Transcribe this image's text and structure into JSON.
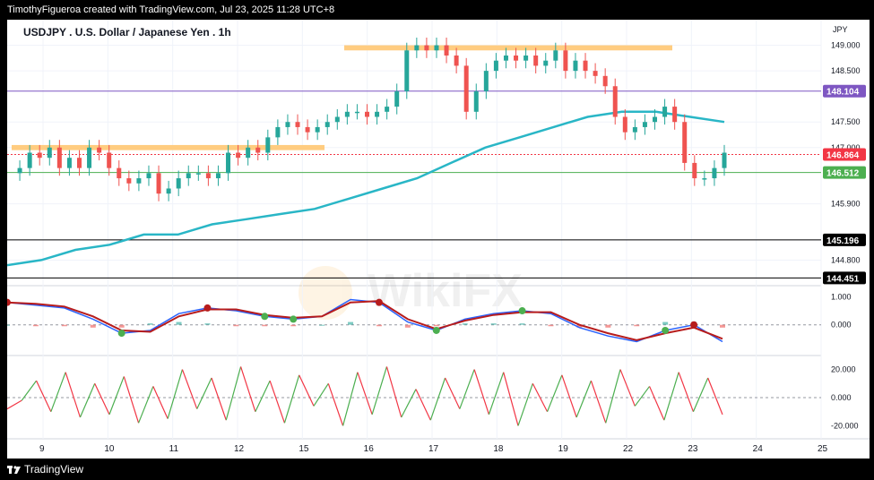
{
  "header": {
    "credit": "TimothyFigueroa created with TradingView.com, Jul 23, 2025 11:28 UTC+8"
  },
  "footer": {
    "brand": "TradingView"
  },
  "watermark": "WikiFX",
  "chart_data": {
    "type": "line",
    "title": "USDJPY . U.S. Dollar / Japanese Yen . 1h",
    "currency": "JPY",
    "x_ticks": [
      "9",
      "10",
      "11",
      "12",
      "15",
      "16",
      "17",
      "18",
      "19",
      "22",
      "23",
      "24",
      "25"
    ],
    "y_ticks": [
      "149.000",
      "148.500",
      "147.500",
      "147.000",
      "145.900",
      "145.200",
      "144.800"
    ],
    "ylim": [
      144.3,
      149.5
    ],
    "price_series": {
      "name": "USDJPY",
      "color": "#26a69a",
      "down_color": "#ef5350",
      "values": [
        146.5,
        146.6,
        146.9,
        146.8,
        147.0,
        146.6,
        146.8,
        146.6,
        147.0,
        146.9,
        146.6,
        146.4,
        146.3,
        146.4,
        146.5,
        146.1,
        146.2,
        146.4,
        146.5,
        146.5,
        146.4,
        146.5,
        146.9,
        146.8,
        147.0,
        146.9,
        147.2,
        147.4,
        147.5,
        147.4,
        147.3,
        147.4,
        147.5,
        147.6,
        147.7,
        147.7,
        147.6,
        147.7,
        147.8,
        148.1,
        148.9,
        149.0,
        148.9,
        149.0,
        148.8,
        148.6,
        147.7,
        148.1,
        148.5,
        148.7,
        148.8,
        148.7,
        148.8,
        148.6,
        148.7,
        148.9,
        148.5,
        148.7,
        148.5,
        148.4,
        148.2,
        147.6,
        147.3,
        147.4,
        147.5,
        147.6,
        147.8,
        147.5,
        146.7,
        146.4,
        146.4,
        146.6,
        146.9
      ],
      "hl_spread": 0.15
    },
    "ma_series": {
      "name": "MA",
      "color": "#29b6c6",
      "values": [
        144.7,
        144.8,
        145.0,
        145.1,
        145.3,
        145.3,
        145.5,
        145.6,
        145.7,
        145.8,
        146.0,
        146.2,
        146.4,
        146.7,
        147.0,
        147.2,
        147.4,
        147.6,
        147.7,
        147.7,
        147.6,
        147.5
      ]
    },
    "zones": [
      {
        "type": "resistance",
        "from": 148.9,
        "to": 149.0,
        "color": "#ffcc80"
      },
      {
        "type": "resistance",
        "from": 146.95,
        "to": 147.05,
        "color": "#ffcc80"
      }
    ],
    "price_lines": [
      {
        "value": 148.104,
        "label": "148.104",
        "color": "#7e57c2"
      },
      {
        "value": 146.864,
        "label": "146.864",
        "color": "#f23645"
      },
      {
        "value": 146.512,
        "label": "146.512",
        "color": "#4caf50"
      },
      {
        "value": 145.196,
        "label": "145.196",
        "color": "#000000"
      },
      {
        "value": 144.451,
        "label": "144.451",
        "color": "#000000"
      }
    ],
    "macd": {
      "y_ticks": [
        "1.000",
        "0.000"
      ],
      "ylim": [
        -1.0,
        1.3
      ],
      "macd_line": {
        "color": "#2962ff",
        "values": [
          0.8,
          0.7,
          0.6,
          0.2,
          -0.3,
          -0.2,
          0.4,
          0.6,
          0.5,
          0.3,
          0.2,
          0.3,
          0.9,
          0.8,
          0.1,
          -0.2,
          0.2,
          0.4,
          0.5,
          0.4,
          -0.1,
          -0.4,
          -0.6,
          -0.2,
          0.0,
          -0.6
        ]
      },
      "signal_line": {
        "color": "#b71c1c",
        "values": [
          0.8,
          0.75,
          0.65,
          0.3,
          -0.2,
          -0.25,
          0.3,
          0.55,
          0.55,
          0.35,
          0.25,
          0.3,
          0.8,
          0.85,
          0.2,
          -0.15,
          0.15,
          0.35,
          0.45,
          0.45,
          0.0,
          -0.3,
          -0.55,
          -0.3,
          -0.1,
          -0.5
        ]
      },
      "histogram": [
        0.0,
        -0.05,
        -0.05,
        -0.1,
        -0.1,
        0.05,
        0.1,
        0.05,
        -0.05,
        -0.05,
        -0.05,
        0.0,
        0.1,
        -0.05,
        -0.1,
        -0.05,
        0.05,
        0.05,
        0.05,
        -0.05,
        -0.1,
        -0.1,
        -0.05,
        0.1,
        0.1,
        -0.1
      ],
      "cross_markers": [
        {
          "index": 0,
          "type": "bearish"
        },
        {
          "index": 4,
          "type": "bullish"
        },
        {
          "index": 7,
          "type": "bearish"
        },
        {
          "index": 9,
          "type": "bullish"
        },
        {
          "index": 10,
          "type": "bullish"
        },
        {
          "index": 13,
          "type": "bearish"
        },
        {
          "index": 15,
          "type": "bullish"
        },
        {
          "index": 18,
          "type": "bullish"
        },
        {
          "index": 23,
          "type": "bullish"
        },
        {
          "index": 24,
          "type": "bearish"
        }
      ]
    },
    "oscillator": {
      "y_ticks": [
        "20.000",
        "0.000",
        "-20.000"
      ],
      "ylim": [
        -28,
        28
      ],
      "color_up": "#4caf50",
      "color_down": "#f23645",
      "values": [
        -8,
        -2,
        12,
        -10,
        18,
        -14,
        10,
        -12,
        15,
        -18,
        8,
        -15,
        20,
        -8,
        14,
        -16,
        22,
        -10,
        12,
        -18,
        16,
        -6,
        10,
        -20,
        18,
        -12,
        22,
        -14,
        6,
        -16,
        14,
        -8,
        20,
        -12,
        18,
        -20,
        10,
        -10,
        16,
        -14,
        12,
        -18,
        20,
        -6,
        8,
        -16,
        18,
        -10,
        14,
        -12
      ]
    }
  }
}
